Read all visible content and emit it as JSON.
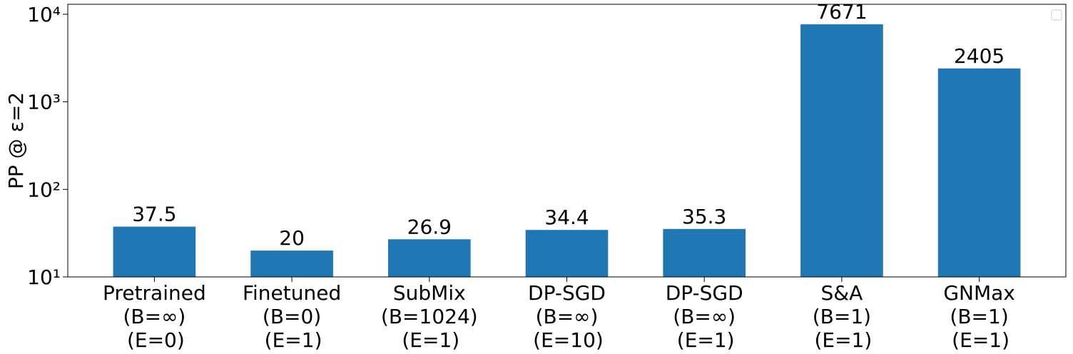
{
  "chart_data": {
    "type": "bar",
    "y_label": "PP @ ε=2",
    "categories": [
      [
        "Pretrained",
        "(B=∞)",
        "(E=0)"
      ],
      [
        "Finetuned",
        "(B=0)",
        "(E=1)"
      ],
      [
        "SubMix",
        "(B=1024)",
        "(E=1)"
      ],
      [
        "DP-SGD",
        "(B=∞)",
        "(E=10)"
      ],
      [
        "DP-SGD",
        "(B=∞)",
        "(E=1)"
      ],
      [
        "S&A",
        "(B=1)",
        "(E=1)"
      ],
      [
        "GNMax",
        "(B=1)",
        "(E=1)"
      ]
    ],
    "values": [
      37.5,
      20,
      26.9,
      34.4,
      35.3,
      7671,
      2405
    ],
    "color": "#1f77b4",
    "y_log": true,
    "ylim": [
      10,
      13000
    ],
    "yticks": [
      {
        "value": 10,
        "label": "10¹"
      },
      {
        "value": 100,
        "label": "10²"
      },
      {
        "value": 1000,
        "label": "10³"
      },
      {
        "value": 10000,
        "label": "10⁴"
      }
    ]
  }
}
